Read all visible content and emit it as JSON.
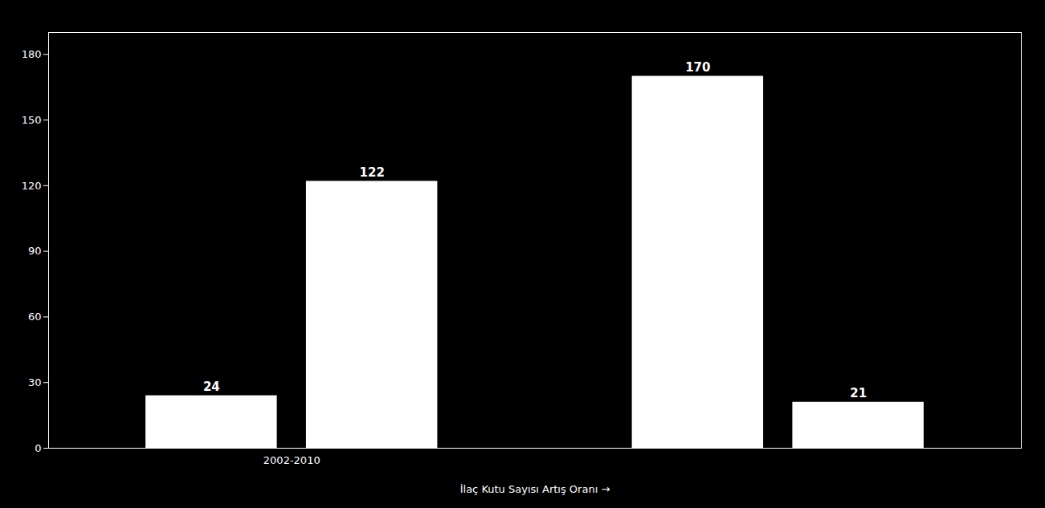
{
  "chart_data": {
    "type": "bar",
    "xlabel": "İlaç Kutu Sayısı Artış Oranı",
    "categories": [
      "2002-2010",
      null
    ],
    "series": [
      {
        "color": "#ffffff",
        "values": [
          24,
          170
        ]
      },
      {
        "color": "#ffffff",
        "values": [
          122,
          21
        ]
      }
    ],
    "ylim": [
      0,
      190
    ],
    "yticks": [
      0,
      30,
      60,
      90,
      120,
      150,
      180
    ],
    "grid": false,
    "data_labels": true
  }
}
